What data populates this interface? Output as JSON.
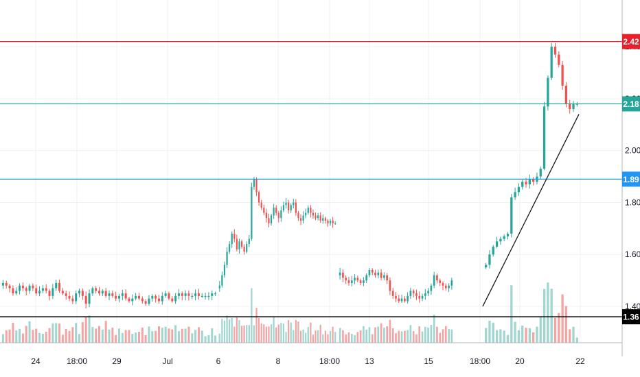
{
  "chart_data": {
    "type": "candlestick",
    "title": "",
    "xlabel": "",
    "ylabel": "",
    "ylim": [
      1.26,
      2.58
    ],
    "grid": true,
    "x_ticks": [
      "24",
      "18:00",
      "29",
      "Jul",
      "6",
      "8",
      "18:00",
      "13",
      "15",
      "18:00",
      "20",
      "22"
    ],
    "y_ticks": [
      1.4,
      1.6,
      1.8,
      2.0,
      2.2,
      2.4
    ],
    "price_lines": [
      {
        "label": "2.42",
        "value": 2.42,
        "color": "#e8202a"
      },
      {
        "label": "2.18",
        "value": 2.18,
        "color": "#26a69a"
      },
      {
        "label": "1.89",
        "value": 1.89,
        "color": "#2196f3"
      },
      {
        "label": "1.36",
        "value": 1.36,
        "color": "#000000"
      }
    ],
    "trendline": {
      "start": 1.4,
      "end": 2.14
    },
    "colors": {
      "up": "#26a69a",
      "down": "#ef5350",
      "up_volume": "#9fd6d0",
      "down_volume": "#f5a3a3",
      "grid": "#eef0f3",
      "axis": "#787b86"
    },
    "segments": [
      {
        "name": "late-june",
        "closes": [
          1.49,
          1.48,
          1.47,
          1.45,
          1.46,
          1.48,
          1.47,
          1.46,
          1.48,
          1.47,
          1.45,
          1.46,
          1.47,
          1.46,
          1.44,
          1.47,
          1.49,
          1.46,
          1.45,
          1.44,
          1.43,
          1.42,
          1.45,
          1.46,
          1.44,
          1.41,
          1.45,
          1.47,
          1.46,
          1.45,
          1.46,
          1.44,
          1.45,
          1.44,
          1.43,
          1.44,
          1.45,
          1.43,
          1.42,
          1.43,
          1.44,
          1.43,
          1.42,
          1.41,
          1.43,
          1.44,
          1.43,
          1.42,
          1.44,
          1.45,
          1.43,
          1.42,
          1.44,
          1.45,
          1.44,
          1.45,
          1.44,
          1.44,
          1.45,
          1.44,
          1.44,
          1.44,
          1.44,
          1.45,
          1.45
        ]
      },
      {
        "name": "early-july",
        "closes": [
          1.48,
          1.52,
          1.56,
          1.61,
          1.64,
          1.68,
          1.66,
          1.62,
          1.65,
          1.63,
          1.61,
          1.64,
          1.66,
          1.86,
          1.89,
          1.84,
          1.8,
          1.78,
          1.76,
          1.74,
          1.72,
          1.75,
          1.78,
          1.76,
          1.74,
          1.77,
          1.79,
          1.8,
          1.77,
          1.79,
          1.8,
          1.76,
          1.74,
          1.73,
          1.75,
          1.76,
          1.78,
          1.76,
          1.75,
          1.74,
          1.75,
          1.73,
          1.74,
          1.73,
          1.72,
          1.73,
          1.72,
          1.72
        ]
      },
      {
        "name": "mid-july",
        "closes": [
          1.53,
          1.51,
          1.5,
          1.49,
          1.5,
          1.51,
          1.5,
          1.49,
          1.5,
          1.52,
          1.54,
          1.53,
          1.52,
          1.53,
          1.51,
          1.52,
          1.5,
          1.46,
          1.44,
          1.43,
          1.42,
          1.43,
          1.42,
          1.44,
          1.46,
          1.45,
          1.44,
          1.43,
          1.44,
          1.45,
          1.46,
          1.48,
          1.52,
          1.5,
          1.49,
          1.48,
          1.47,
          1.48,
          1.5
        ]
      },
      {
        "name": "late-july",
        "closes": [
          1.56,
          1.6,
          1.63,
          1.65,
          1.66,
          1.67,
          1.68,
          1.82,
          1.84,
          1.86,
          1.88,
          1.87,
          1.89,
          1.88,
          1.9,
          1.93,
          2.17,
          2.28,
          2.4,
          2.37,
          2.33,
          2.25,
          2.18,
          2.16,
          2.18,
          2.18
        ]
      }
    ]
  }
}
